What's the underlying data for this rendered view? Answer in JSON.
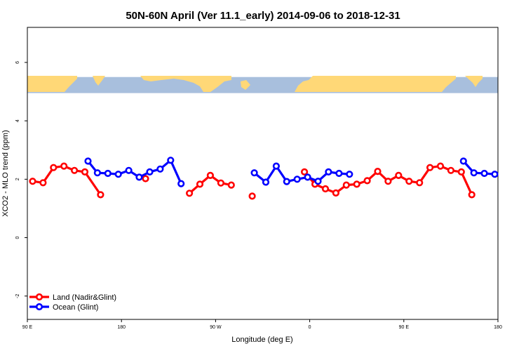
{
  "chart_data": {
    "type": "line",
    "title": "50N-60N April (Ver 11.1_early)   2014-09-06 to 2018-12-31",
    "xlabel": "Longitude (deg E)",
    "ylabel": "XCO2 - MLO trend (ppm)",
    "xlim": [
      90,
      540
    ],
    "ylim": [
      -2.8,
      7.2
    ],
    "x_ticks": [
      {
        "value": 90,
        "label": "90 E"
      },
      {
        "value": 180,
        "label": "180"
      },
      {
        "value": 270,
        "label": "90 W"
      },
      {
        "value": 360,
        "label": "0"
      },
      {
        "value": 450,
        "label": "90 E"
      },
      {
        "value": 540,
        "label": "180"
      }
    ],
    "y_ticks": [
      {
        "value": -2,
        "label": "-2"
      },
      {
        "value": 0,
        "label": "0"
      },
      {
        "value": 2,
        "label": "2"
      },
      {
        "value": 4,
        "label": "4"
      },
      {
        "value": 6,
        "label": "6"
      }
    ],
    "series": [
      {
        "name": "Land (Nadir&Glint)",
        "color": "#ff0000",
        "segments": [
          [
            [
              95,
              1.93
            ],
            [
              105,
              1.88
            ],
            [
              115,
              2.4
            ],
            [
              125,
              2.45
            ],
            [
              135,
              2.3
            ],
            [
              145,
              2.25
            ],
            [
              160,
              1.47
            ]
          ],
          [
            [
              203,
              2.02
            ]
          ],
          [
            [
              245,
              1.52
            ],
            [
              255,
              1.83
            ],
            [
              265,
              2.13
            ],
            [
              275,
              1.87
            ],
            [
              285,
              1.8
            ]
          ],
          [
            [
              305,
              1.42
            ]
          ],
          [
            [
              355,
              2.25
            ],
            [
              365,
              1.83
            ],
            [
              375,
              1.67
            ],
            [
              385,
              1.53
            ],
            [
              395,
              1.8
            ],
            [
              405,
              1.83
            ],
            [
              415,
              1.95
            ],
            [
              425,
              2.27
            ],
            [
              435,
              1.93
            ],
            [
              445,
              2.13
            ],
            [
              455,
              1.93
            ],
            [
              465,
              1.88
            ],
            [
              475,
              2.4
            ],
            [
              485,
              2.45
            ],
            [
              495,
              2.3
            ],
            [
              505,
              2.25
            ],
            [
              515,
              1.47
            ]
          ]
        ]
      },
      {
        "name": "Ocean (Glint)",
        "color": "#0000ff",
        "segments": [
          [
            [
              148,
              2.62
            ],
            [
              157,
              2.22
            ],
            [
              167,
              2.2
            ],
            [
              177,
              2.17
            ],
            [
              187,
              2.3
            ],
            [
              197,
              2.07
            ],
            [
              207,
              2.25
            ],
            [
              217,
              2.35
            ],
            [
              227,
              2.65
            ],
            [
              237,
              1.85
            ]
          ],
          [
            [
              307,
              2.22
            ],
            [
              318,
              1.9
            ],
            [
              328,
              2.45
            ],
            [
              338,
              1.92
            ],
            [
              348,
              2.0
            ],
            [
              358,
              2.07
            ],
            [
              368,
              1.93
            ],
            [
              378,
              2.25
            ],
            [
              388,
              2.2
            ],
            [
              398,
              2.17
            ]
          ],
          [
            [
              507,
              2.62
            ],
            [
              517,
              2.22
            ],
            [
              527,
              2.2
            ],
            [
              537,
              2.17
            ]
          ]
        ]
      }
    ],
    "background_map": {
      "lat_range": "50N-60N",
      "land_color": "#ffd877",
      "ocean_color": "#a8bfdd",
      "y_range": [
        4.95,
        5.5
      ]
    },
    "legend_position": "bottom-left",
    "grid": false
  }
}
